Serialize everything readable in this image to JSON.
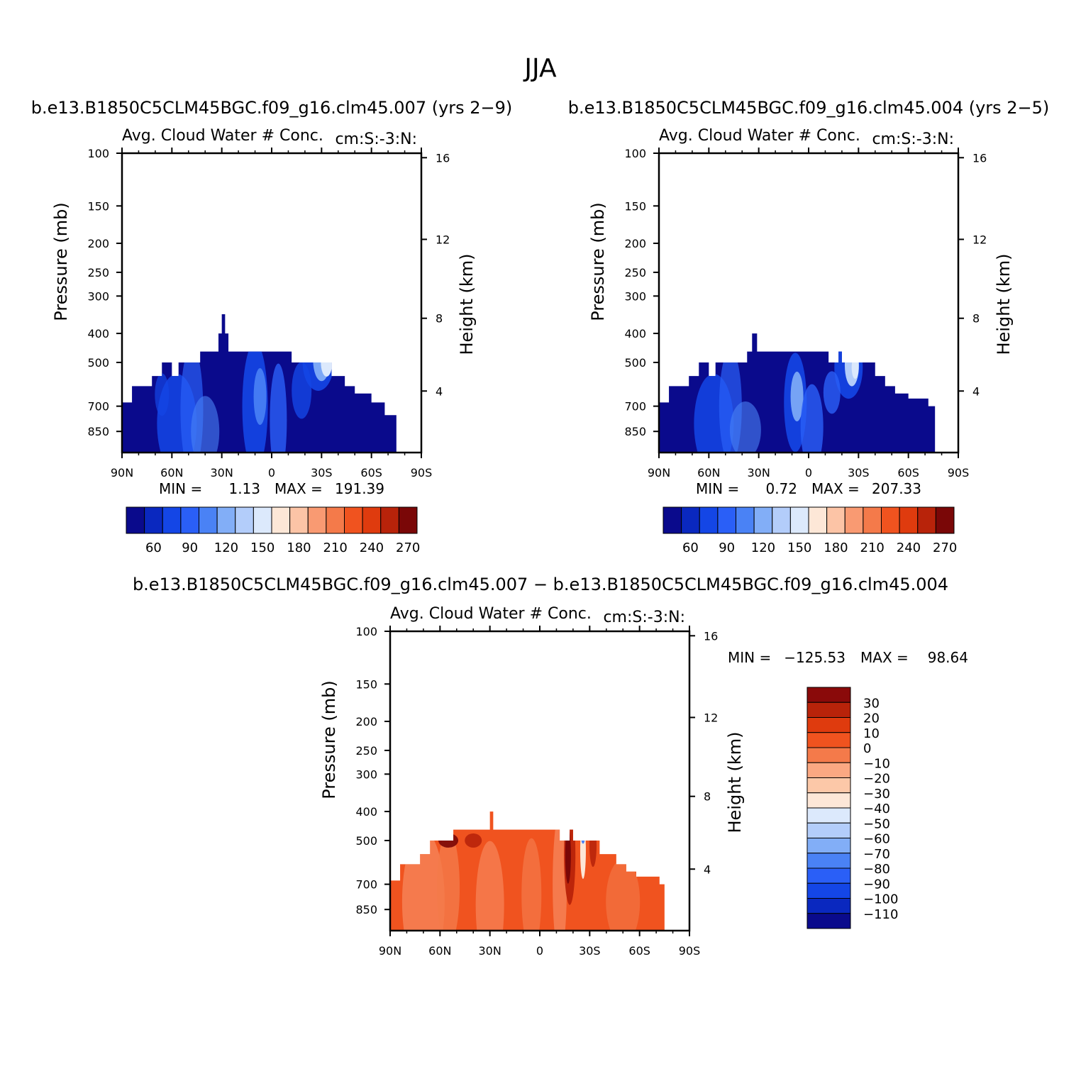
{
  "figure": {
    "main_title": "JJA",
    "diff_title": "b.e13.B1850C5CLM45BGC.f09_g16.clm45.007 − b.e13.B1850C5CLM45BGC.f09_g16.clm45.004"
  },
  "axes_text": {
    "left_label": "Pressure (mb)",
    "right_label": "Height (km)",
    "var_label": "Avg. Cloud Water # Conc.",
    "units_label": "cm:S:-3:N:"
  },
  "chart_data": [
    {
      "type": "heatmap",
      "case_title": "b.e13.B1850C5CLM45BGC.f09_g16.clm45.007 (yrs 2−9)",
      "min_label": "MIN =",
      "min_value": "1.13",
      "max_label": "MAX =",
      "max_value": "191.39",
      "x_ticks": [
        "90N",
        "60N",
        "30N",
        "0",
        "30S",
        "60S",
        "90S"
      ],
      "y_ticks": [
        "100",
        "150",
        "200",
        "250",
        "300",
        "400",
        "500",
        "700",
        "850"
      ],
      "y_ticks_right": [
        "16",
        "12",
        "8",
        "4"
      ],
      "ylim": [
        100,
        1000
      ],
      "log_scale_y": true,
      "colorbar_labels": [
        "60",
        "90",
        "120",
        "150",
        "180",
        "210",
        "240",
        "270"
      ],
      "colorbar_colors": [
        "#0a0a8c",
        "#0a28bf",
        "#1446e6",
        "#2a5ff7",
        "#4a82f5",
        "#82aef7",
        "#b3cdfa",
        "#dce9fc",
        "#fde7d7",
        "#fcc4a6",
        "#f99a72",
        "#f47a4a",
        "#f0531f",
        "#df3b0e",
        "#b8230a",
        "#7a0707"
      ]
    },
    {
      "type": "heatmap",
      "case_title": "b.e13.B1850C5CLM45BGC.f09_g16.clm45.004 (yrs 2−5)",
      "min_label": "MIN =",
      "min_value": "0.72",
      "max_label": "MAX =",
      "max_value": "207.33",
      "x_ticks": [
        "90N",
        "60N",
        "30N",
        "0",
        "30S",
        "60S",
        "90S"
      ],
      "y_ticks": [
        "100",
        "150",
        "200",
        "250",
        "300",
        "400",
        "500",
        "700",
        "850"
      ],
      "y_ticks_right": [
        "16",
        "12",
        "8",
        "4"
      ],
      "ylim": [
        100,
        1000
      ],
      "log_scale_y": true,
      "colorbar_labels": [
        "60",
        "90",
        "120",
        "150",
        "180",
        "210",
        "240",
        "270"
      ],
      "colorbar_colors": [
        "#0a0a8c",
        "#0a28bf",
        "#1446e6",
        "#2a5ff7",
        "#4a82f5",
        "#82aef7",
        "#b3cdfa",
        "#dce9fc",
        "#fde7d7",
        "#fcc4a6",
        "#f99a72",
        "#f47a4a",
        "#f0531f",
        "#df3b0e",
        "#b8230a",
        "#7a0707"
      ]
    },
    {
      "type": "heatmap",
      "case_title": "",
      "min_label": "MIN =",
      "min_value": "−125.53",
      "max_label": "MAX =",
      "max_value": "98.64",
      "x_ticks": [
        "90N",
        "60N",
        "30N",
        "0",
        "30S",
        "60S",
        "90S"
      ],
      "y_ticks": [
        "100",
        "150",
        "200",
        "250",
        "300",
        "400",
        "500",
        "700",
        "850"
      ],
      "y_ticks_right": [
        "16",
        "12",
        "8",
        "4"
      ],
      "ylim": [
        100,
        1000
      ],
      "log_scale_y": true,
      "colorbar_labels": [
        "30",
        "20",
        "10",
        "0",
        "−10",
        "−20",
        "−30",
        "−40",
        "−50",
        "−60",
        "−70",
        "−80",
        "−90",
        "−100",
        "−110"
      ],
      "colorbar_colors": [
        "#8a0a0a",
        "#b8230a",
        "#df3b0e",
        "#f0531f",
        "#f47a4a",
        "#fba882",
        "#fcc8a8",
        "#fde7d7",
        "#dce9fc",
        "#b3cdfa",
        "#82aef7",
        "#4a82f5",
        "#2a5ff7",
        "#1446e6",
        "#0a28bf",
        "#0a0a8c"
      ]
    }
  ]
}
